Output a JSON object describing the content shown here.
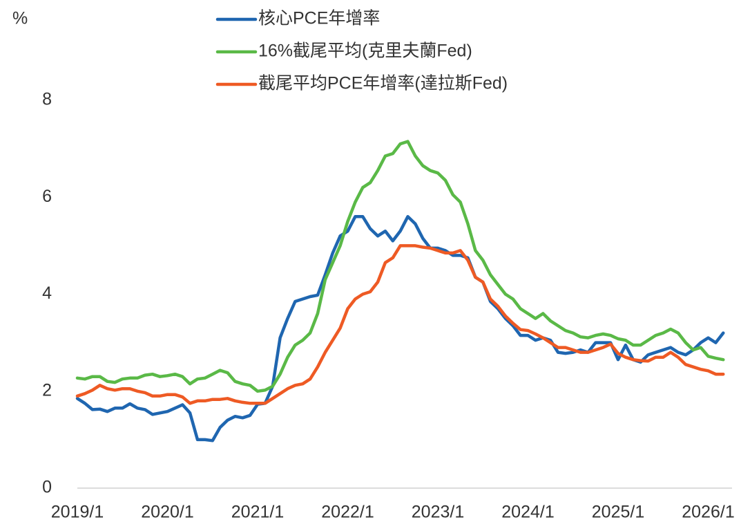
{
  "chart_data": {
    "type": "line",
    "ylabel": "%",
    "categories": [
      "2019/1",
      null,
      null,
      null,
      null,
      null,
      null,
      null,
      null,
      null,
      null,
      null,
      "2020/1",
      null,
      null,
      null,
      null,
      null,
      null,
      null,
      null,
      null,
      null,
      null,
      "2021/1",
      null,
      null,
      null,
      null,
      null,
      null,
      null,
      null,
      null,
      null,
      null,
      "2022/1",
      null,
      null,
      null,
      null,
      null,
      null,
      null,
      null,
      null,
      null,
      null,
      "2023/1",
      null,
      null,
      null,
      null,
      null,
      null,
      null,
      null,
      null,
      null,
      null,
      "2024/1",
      null,
      null,
      null,
      null,
      null,
      null,
      null,
      null,
      null,
      null,
      null,
      "2025/1",
      null,
      null,
      null,
      null,
      null,
      null,
      null,
      null,
      null,
      null,
      null,
      "2026/1",
      null,
      null
    ],
    "ylim": [
      0,
      8
    ],
    "yticks": [
      0,
      2,
      4,
      6,
      8
    ],
    "grid": false,
    "series": [
      {
        "name": "核心PCE年增率",
        "color": "#1f66b0",
        "values": [
          1.85,
          1.75,
          1.62,
          1.63,
          1.58,
          1.65,
          1.65,
          1.74,
          1.65,
          1.62,
          1.52,
          1.55,
          1.58,
          1.65,
          1.72,
          1.55,
          1.0,
          1.0,
          0.98,
          1.25,
          1.4,
          1.48,
          1.45,
          1.5,
          1.73,
          1.75,
          2.1,
          3.1,
          3.5,
          3.85,
          3.9,
          3.95,
          3.98,
          4.4,
          4.85,
          5.2,
          5.3,
          5.6,
          5.6,
          5.35,
          5.2,
          5.3,
          5.1,
          5.3,
          5.6,
          5.45,
          5.15,
          4.95,
          4.95,
          4.9,
          4.8,
          4.8,
          4.75,
          4.35,
          4.25,
          3.85,
          3.7,
          3.5,
          3.35,
          3.15,
          3.15,
          3.05,
          3.1,
          3.05,
          2.8,
          2.78,
          2.8,
          2.85,
          2.8,
          3.0,
          3.0,
          3.0,
          2.65,
          2.95,
          2.65,
          2.6,
          2.75,
          2.8,
          2.85,
          2.9,
          2.8,
          2.75,
          2.85,
          3.0,
          3.1,
          3.0,
          3.2
        ]
      },
      {
        "name": "16%截尾平均(克里夫蘭Fed)",
        "color": "#5ab947",
        "values": [
          2.27,
          2.25,
          2.3,
          2.3,
          2.2,
          2.18,
          2.25,
          2.27,
          2.27,
          2.33,
          2.35,
          2.3,
          2.32,
          2.35,
          2.3,
          2.15,
          2.25,
          2.27,
          2.35,
          2.43,
          2.38,
          2.2,
          2.15,
          2.12,
          2.0,
          2.02,
          2.1,
          2.35,
          2.7,
          2.95,
          3.05,
          3.2,
          3.6,
          4.3,
          4.65,
          5.0,
          5.5,
          5.9,
          6.2,
          6.3,
          6.55,
          6.85,
          6.9,
          7.1,
          7.15,
          6.85,
          6.65,
          6.55,
          6.5,
          6.35,
          6.05,
          5.9,
          5.45,
          4.9,
          4.7,
          4.4,
          4.2,
          4.0,
          3.9,
          3.7,
          3.6,
          3.5,
          3.6,
          3.45,
          3.35,
          3.25,
          3.2,
          3.12,
          3.1,
          3.15,
          3.18,
          3.15,
          3.08,
          3.05,
          2.95,
          2.95,
          3.05,
          3.15,
          3.2,
          3.28,
          3.2,
          3.0,
          2.85,
          2.9,
          2.72,
          2.68,
          2.65
        ]
      },
      {
        "name": "截尾平均PCE年增率(達拉斯Fed)",
        "color": "#ee5a24",
        "values": [
          1.9,
          1.95,
          2.02,
          2.12,
          2.05,
          2.02,
          2.05,
          2.05,
          2.0,
          1.97,
          1.9,
          1.9,
          1.93,
          1.93,
          1.88,
          1.75,
          1.8,
          1.8,
          1.83,
          1.83,
          1.85,
          1.8,
          1.77,
          1.75,
          1.75,
          1.75,
          1.85,
          1.95,
          2.05,
          2.12,
          2.15,
          2.25,
          2.5,
          2.8,
          3.05,
          3.3,
          3.7,
          3.9,
          4.0,
          4.05,
          4.25,
          4.65,
          4.75,
          5.0,
          5.0,
          5.0,
          4.97,
          4.95,
          4.9,
          4.85,
          4.85,
          4.9,
          4.7,
          4.35,
          4.25,
          3.9,
          3.75,
          3.55,
          3.4,
          3.27,
          3.25,
          3.18,
          3.1,
          3.0,
          2.9,
          2.9,
          2.85,
          2.8,
          2.8,
          2.85,
          2.9,
          2.97,
          2.78,
          2.7,
          2.65,
          2.63,
          2.62,
          2.7,
          2.7,
          2.8,
          2.7,
          2.55,
          2.5,
          2.45,
          2.42,
          2.35,
          2.35
        ]
      }
    ]
  }
}
